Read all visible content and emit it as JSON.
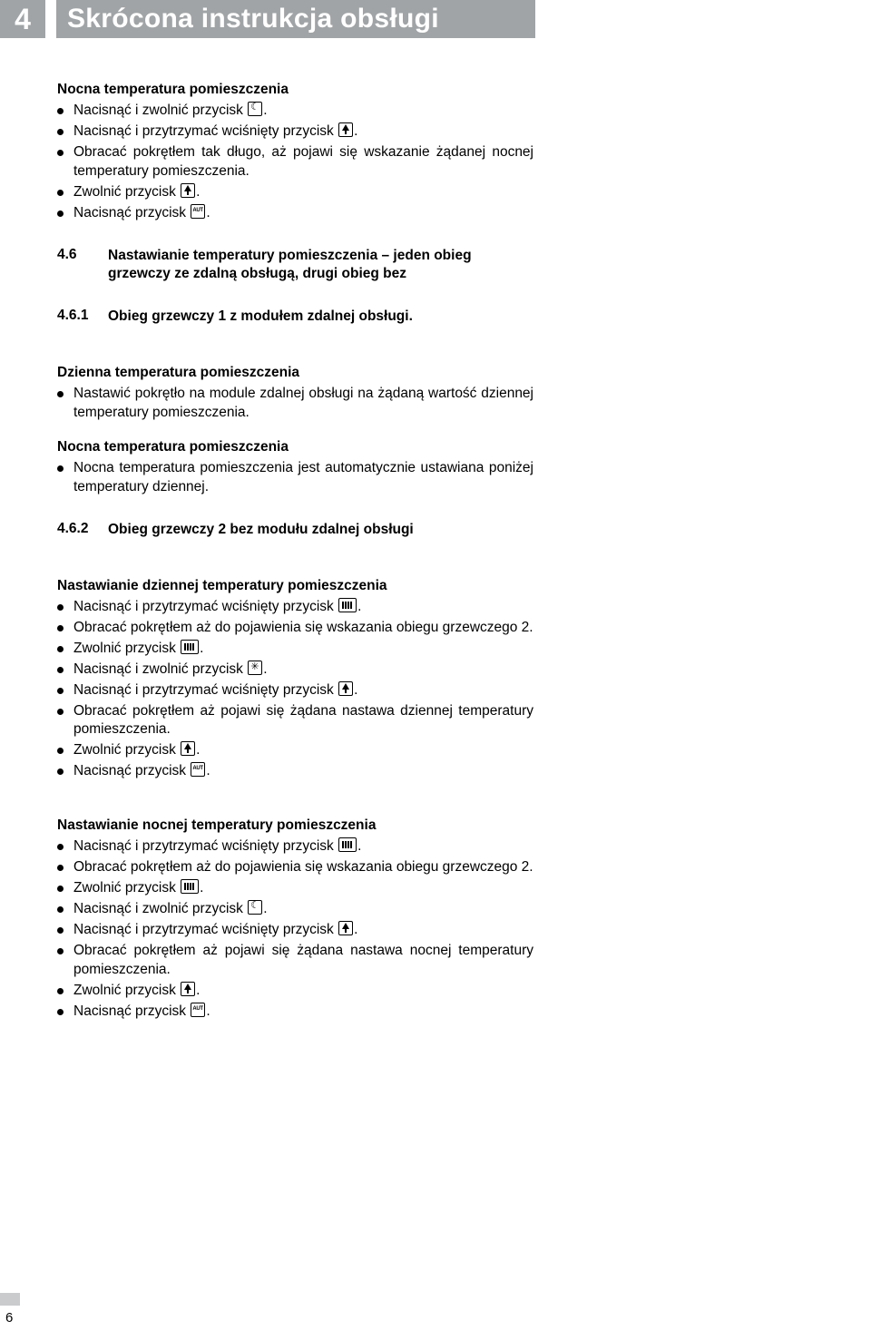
{
  "header": {
    "chapter_num": "4",
    "chapter_title": "Skrócona instrukcja obsługi"
  },
  "block1": {
    "title": "Nocna temperatura pomieszczenia",
    "items": [
      [
        {
          "t": "Nacisnąć i zwolnić przycisk "
        },
        {
          "icon": "moon"
        },
        {
          "t": "."
        }
      ],
      [
        {
          "t": "Nacisnąć i przytrzymać wciśnięty przycisk "
        },
        {
          "icon": "therm"
        },
        {
          "t": "."
        }
      ],
      [
        {
          "t": "Obracać pokrętłem tak długo, aż pojawi się wskazanie żądanej nocnej temperatury pomieszczenia."
        }
      ],
      [
        {
          "t": "Zwolnić przycisk "
        },
        {
          "icon": "therm"
        },
        {
          "t": "."
        }
      ],
      [
        {
          "t": "Nacisnąć przycisk "
        },
        {
          "icon": "aut"
        },
        {
          "t": "."
        }
      ]
    ]
  },
  "sec46": {
    "num": "4.6",
    "title": "Nastawianie temperatury pomieszczenia – jeden obieg grzewczy ze zdalną obsługą, drugi obieg bez"
  },
  "sec461": {
    "num": "4.6.1",
    "title": "Obieg grzewczy 1 z modułem zdalnej obsługi."
  },
  "block2": {
    "title": "Dzienna temperatura pomieszczenia",
    "items": [
      [
        {
          "t": "Nastawić pokrętło na module zdalnej obsługi na żądaną wartość dziennej temperatury pomieszczenia."
        }
      ]
    ]
  },
  "block3": {
    "title": "Nocna temperatura pomieszczenia",
    "items": [
      [
        {
          "t": "Nocna temperatura pomieszczenia jest automatycznie ustawiana poniżej temperatury dziennej."
        }
      ]
    ]
  },
  "sec462": {
    "num": "4.6.2",
    "title": "Obieg grzewczy 2 bez modułu zdalnej obsługi"
  },
  "block4": {
    "title": "Nastawianie dziennej temperatury pomieszczenia",
    "items": [
      [
        {
          "t": "Nacisnąć i przytrzymać wciśnięty przycisk "
        },
        {
          "icon": "rad"
        },
        {
          "t": "."
        }
      ],
      [
        {
          "t": "Obracać pokrętłem aż do pojawienia się wskazania obiegu grzewczego 2."
        }
      ],
      [
        {
          "t": "Zwolnić przycisk "
        },
        {
          "icon": "rad"
        },
        {
          "t": "."
        }
      ],
      [
        {
          "t": "Nacisnąć i zwolnić przycisk "
        },
        {
          "icon": "sun"
        },
        {
          "t": "."
        }
      ],
      [
        {
          "t": "Nacisnąć i przytrzymać wciśnięty przycisk "
        },
        {
          "icon": "therm"
        },
        {
          "t": "."
        }
      ],
      [
        {
          "t": "Obracać pokrętłem aż pojawi się żądana nastawa dziennej temperatury pomieszczenia."
        }
      ],
      [
        {
          "t": "Zwolnić przycisk "
        },
        {
          "icon": "therm"
        },
        {
          "t": "."
        }
      ],
      [
        {
          "t": "Nacisnąć przycisk "
        },
        {
          "icon": "aut"
        },
        {
          "t": "."
        }
      ]
    ]
  },
  "block5": {
    "title": "Nastawianie nocnej temperatury pomieszczenia",
    "items": [
      [
        {
          "t": "Nacisnąć i przytrzymać wciśnięty przycisk "
        },
        {
          "icon": "rad"
        },
        {
          "t": "."
        }
      ],
      [
        {
          "t": "Obracać pokrętłem aż do pojawienia się wskazania obiegu grzewczego 2."
        }
      ],
      [
        {
          "t": "Zwolnić przycisk "
        },
        {
          "icon": "rad"
        },
        {
          "t": "."
        }
      ],
      [
        {
          "t": "Nacisnąć i zwolnić przycisk "
        },
        {
          "icon": "moon"
        },
        {
          "t": "."
        }
      ],
      [
        {
          "t": "Nacisnąć i przytrzymać wciśnięty przycisk "
        },
        {
          "icon": "therm"
        },
        {
          "t": "."
        }
      ],
      [
        {
          "t": "Obracać pokrętłem aż pojawi się żądana nastawa nocnej temperatury pomieszczenia."
        }
      ],
      [
        {
          "t": "Zwolnić przycisk "
        },
        {
          "icon": "therm"
        },
        {
          "t": "."
        }
      ],
      [
        {
          "t": "Nacisnąć przycisk "
        },
        {
          "icon": "aut"
        },
        {
          "t": "."
        }
      ]
    ]
  },
  "page_number": "6",
  "colors": {
    "header_band": "#a1a4a6",
    "header_text": "#ffffff",
    "body_text": "#000000",
    "background": "#ffffff",
    "footer_bar": "#c9cbcc"
  }
}
